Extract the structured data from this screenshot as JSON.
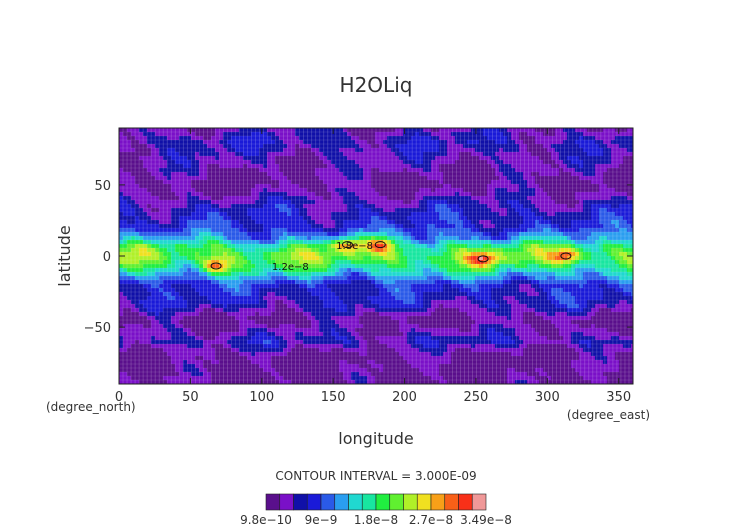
{
  "chart_data": {
    "type": "heatmap",
    "title": "H2OLiq",
    "xlabel": "longitude",
    "ylabel": "latitude",
    "xlim": [
      0,
      360
    ],
    "ylim": [
      -90,
      90
    ],
    "x_ticks": [
      0,
      50,
      100,
      150,
      200,
      250,
      300,
      350
    ],
    "y_ticks": [
      50,
      0,
      -50
    ],
    "x_tick_labels": [
      "0",
      "50",
      "100",
      "150",
      "200",
      "250",
      "300",
      "350"
    ],
    "y_tick_labels": [
      "50",
      "0",
      "−50"
    ],
    "x_unit_left": "(degree_north)",
    "x_unit_right": "(degree_east)",
    "grid": true,
    "contour_interval_text": "CONTOUR INTERVAL = 3.000E-09",
    "colorbar": {
      "colors": [
        "#5a0f8c",
        "#7a10c8",
        "#1010a8",
        "#1a1ad8",
        "#2a5ae8",
        "#2a9ef0",
        "#20d8d0",
        "#18e6a0",
        "#20ee40",
        "#60f030",
        "#b0f028",
        "#f0e020",
        "#f8a018",
        "#f86018",
        "#f83018",
        "#f09898"
      ],
      "tick_labels": [
        "9.8e−10",
        "9e−9",
        "1.8e−8",
        "2.7e−8",
        "3.49e−8"
      ]
    },
    "profile_by_latitude": [
      {
        "lat": -90,
        "level": 0
      },
      {
        "lat": -70,
        "level": 0
      },
      {
        "lat": -60,
        "level": 2
      },
      {
        "lat": -45,
        "level": 0
      },
      {
        "lat": -35,
        "level": 2
      },
      {
        "lat": -20,
        "level": 3
      },
      {
        "lat": -12,
        "level": 6
      },
      {
        "lat": -6,
        "level": 8
      },
      {
        "lat": 0,
        "level": 9
      },
      {
        "lat": 6,
        "level": 8
      },
      {
        "lat": 12,
        "level": 5
      },
      {
        "lat": 20,
        "level": 3
      },
      {
        "lat": 35,
        "level": 2
      },
      {
        "lat": 50,
        "level": 0
      },
      {
        "lat": 65,
        "level": 1
      },
      {
        "lat": 80,
        "level": 2
      },
      {
        "lat": 90,
        "level": 1
      }
    ],
    "maxima": [
      {
        "lon": 68,
        "lat": -7
      },
      {
        "lon": 160,
        "lat": 8
      },
      {
        "lon": 183,
        "lat": 8
      },
      {
        "lon": 255,
        "lat": -2
      },
      {
        "lon": 313,
        "lat": 0
      }
    ],
    "contour_labels": [
      {
        "text": "1.8e−8",
        "lon": 165,
        "lat": 5
      },
      {
        "text": "1.2e−8",
        "lon": 120,
        "lat": -10
      }
    ]
  }
}
